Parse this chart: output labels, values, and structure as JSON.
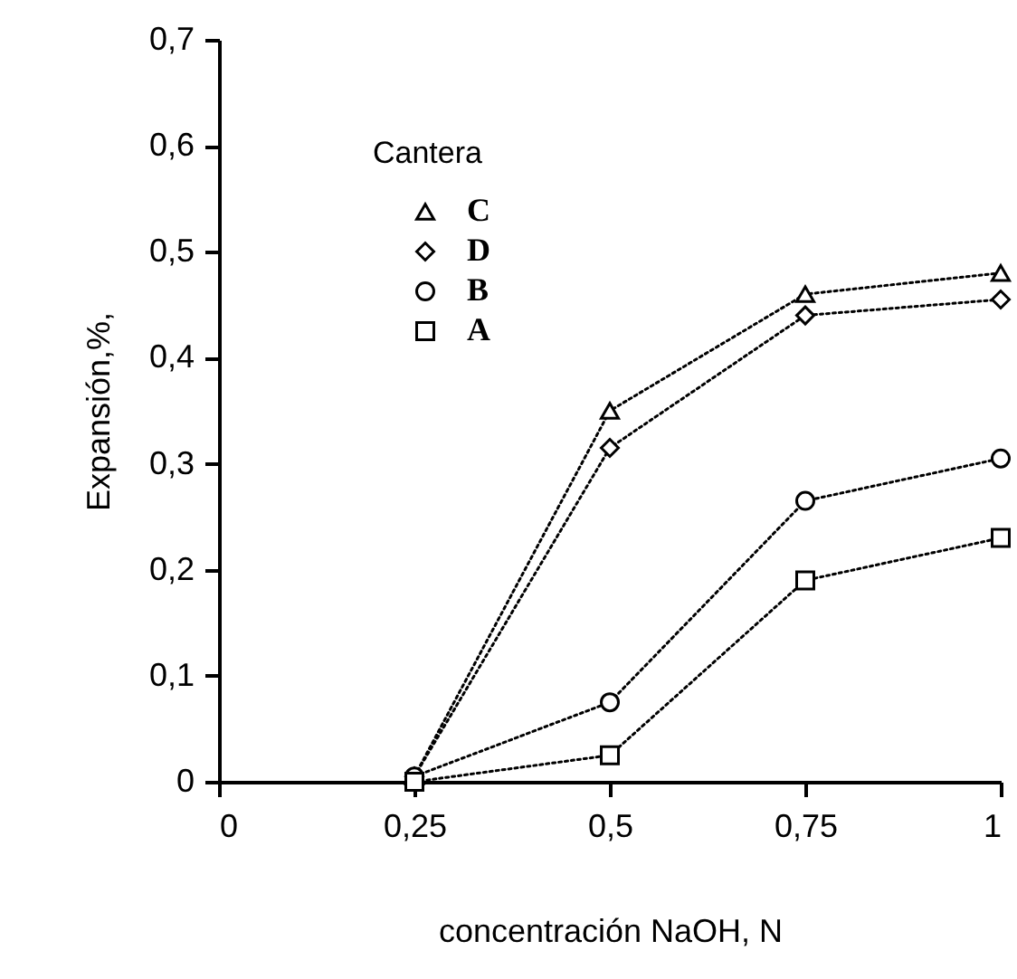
{
  "chart_data": {
    "type": "line",
    "xlabel": "concentración NaOH, N",
    "ylabel": "Expansión,%,",
    "legend_title": "Cantera",
    "legend": "top left",
    "line_style": "dotted",
    "grid": false,
    "x": [
      0.25,
      0.5,
      0.75,
      1
    ],
    "xlim": [
      0,
      1
    ],
    "xticks": [
      0,
      {
        "value": 0.25,
        "label": "0,25"
      },
      {
        "value": 0.5,
        "label": "0,5"
      },
      {
        "value": 0.75,
        "label": "0,75"
      },
      1
    ],
    "ylim": [
      0,
      0.7
    ],
    "yticks": [
      0,
      {
        "value": 0.1,
        "label": "0,1"
      },
      {
        "value": 0.2,
        "label": "0,2"
      },
      {
        "value": 0.3,
        "label": "0,3"
      },
      {
        "value": 0.4,
        "label": "0,4"
      },
      {
        "value": 0.5,
        "label": "0,5"
      },
      {
        "value": 0.6,
        "label": "0,6"
      },
      {
        "value": 0.7,
        "label": "0,7"
      }
    ],
    "series": [
      {
        "name": "C",
        "color": "#000000",
        "marker": "triangle",
        "values": [
          0.005,
          0.35,
          0.46,
          0.48
        ]
      },
      {
        "name": "D",
        "color": "#000000",
        "marker": "diamond",
        "values": [
          0.005,
          0.315,
          0.44,
          0.455
        ]
      },
      {
        "name": "B",
        "color": "#000000",
        "marker": "circle",
        "values": [
          0.005,
          0.075,
          0.265,
          0.305
        ]
      },
      {
        "name": "A",
        "color": "#000000",
        "marker": "square",
        "values": [
          0,
          0.025,
          0.19,
          0.23
        ]
      }
    ]
  }
}
